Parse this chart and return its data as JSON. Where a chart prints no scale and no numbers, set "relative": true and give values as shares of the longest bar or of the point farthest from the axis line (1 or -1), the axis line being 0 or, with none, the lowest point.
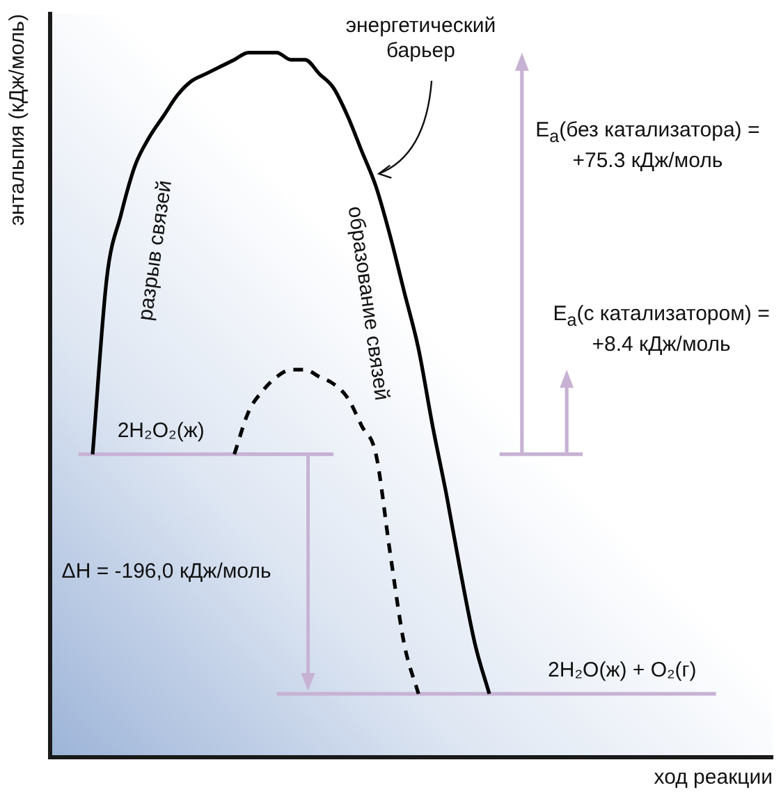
{
  "chart_data": {
    "type": "line",
    "relative": true,
    "xlabel": "ход реакции",
    "ylabel": "энтальпия (кДж/моль)",
    "grid": false,
    "legend": false,
    "marker": "none",
    "categories": [
      null,
      null,
      null,
      null,
      null,
      null,
      null,
      null,
      null,
      null,
      null,
      null,
      null,
      null,
      null,
      null,
      null,
      null,
      null,
      null,
      null,
      null,
      null,
      null,
      null,
      null,
      null,
      null,
      null,
      null,
      null,
      null,
      null,
      null,
      null,
      null,
      null,
      null,
      null,
      null,
      null,
      null,
      null,
      null,
      null,
      null,
      null,
      null,
      null,
      null,
      null,
      null
    ],
    "annotations": [
      "энергетический барьер",
      "разрыв связей",
      "образование связей",
      "E$_{a}$(без катализатора) = +75.3 кДж/моль",
      "E$_{a}$(с катализатором) = +8.4 кДж/моль",
      "ΔH = -196,0 кДж/моль"
    ],
    "series": [
      {
        "color": "#000000",
        "line_style": "solid",
        "values": [
          null,
          null,
          null,
          0.43,
          0.68,
          0.77,
          0.84,
          0.88,
          0.91,
          0.94,
          0.96,
          0.97,
          0.98,
          0.99,
          1,
          1,
          1,
          0.99,
          0.99,
          0.97,
          0.95,
          0.91,
          0.86,
          0.81,
          0.74,
          0.66,
          0.58,
          0.47,
          0.37,
          0.26,
          0.16,
          0.09,
          null,
          null,
          null,
          null,
          null,
          null,
          null,
          null,
          null,
          null,
          null,
          null,
          null,
          null,
          null,
          null,
          null,
          null,
          null,
          null
        ]
      },
      {
        "color": "#000000",
        "line_style": "dashed",
        "values": [
          null,
          null,
          null,
          null,
          null,
          null,
          null,
          null,
          null,
          null,
          null,
          null,
          null,
          0.43,
          0.49,
          0.52,
          0.54,
          0.55,
          0.55,
          0.54,
          0.53,
          0.51,
          0.47,
          0.43,
          0.29,
          0.16,
          0.09,
          null,
          null,
          null,
          null,
          null,
          null,
          null,
          null,
          null,
          null,
          null,
          null,
          null,
          null,
          null,
          null,
          null,
          null,
          null,
          null,
          null,
          null,
          null,
          null,
          null
        ]
      },
      {
        "name": "2H₂O₂(ж)",
        "color": "#c7b2d4",
        "line_style": "solid",
        "values": [
          null,
          null,
          0.43,
          0.43,
          0.43,
          0.43,
          0.43,
          0.43,
          0.43,
          0.43,
          0.43,
          0.43,
          0.43,
          0.43,
          0.43,
          0.43,
          0.43,
          0.43,
          0.43,
          0.43,
          0.43,
          null,
          null,
          null,
          null,
          null,
          null,
          null,
          null,
          null,
          null,
          null,
          null,
          null,
          null,
          null,
          null,
          null,
          null,
          null,
          null,
          null,
          null,
          null,
          null,
          null,
          null,
          null,
          null,
          null,
          null,
          null
        ]
      },
      {
        "name": "2H₂O(ж) + O₂(г)",
        "color": "#c7b2d4",
        "line_style": "solid",
        "values": [
          null,
          null,
          null,
          null,
          null,
          null,
          null,
          null,
          null,
          null,
          null,
          null,
          null,
          null,
          null,
          null,
          0.09,
          0.09,
          0.09,
          0.09,
          0.09,
          0.09,
          0.09,
          0.09,
          0.09,
          0.09,
          0.09,
          0.09,
          0.09,
          0.09,
          0.09,
          0.09,
          0.09,
          0.09,
          0.09,
          0.09,
          0.09,
          0.09,
          0.09,
          0.09,
          0.09,
          0.09,
          0.09,
          0.09,
          0.09,
          0.09,
          0.09,
          0.09,
          null,
          null,
          null,
          null
        ]
      }
    ]
  }
}
